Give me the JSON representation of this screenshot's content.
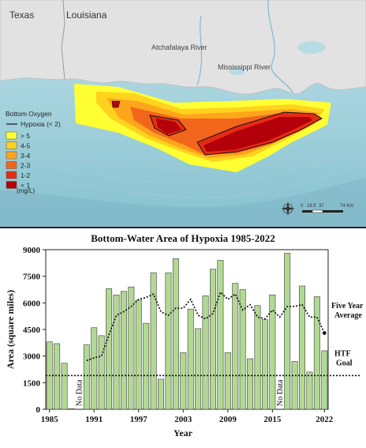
{
  "map": {
    "labels": {
      "texas": "Texas",
      "louisiana": "Louisiana",
      "atchafalaya": "Atchafalaya River",
      "mississippi": "Mississippi River"
    },
    "legend": {
      "title": "Bottom Oxygen",
      "hypoxia_line": "Hypoxia  (< 2)",
      "items": [
        {
          "label": "> 5",
          "color": "#ffff33"
        },
        {
          "label": "4-5",
          "color": "#ffd21e"
        },
        {
          "label": "3-4",
          "color": "#ffa51c"
        },
        {
          "label": "2-3",
          "color": "#f2661c"
        },
        {
          "label": "1-2",
          "color": "#e62b14"
        },
        {
          "label": "< 1",
          "color": "#b3000b"
        }
      ],
      "units": "(mg/L)"
    },
    "scale": {
      "ticks": [
        "0",
        "18.5",
        "37",
        "74 Km"
      ]
    },
    "compass_icon": "compass-rose-icon",
    "colors": {
      "land": "#e4e4e4",
      "water": "#b9dce4",
      "deep_water": "#8ec8d4"
    }
  },
  "chart_data": {
    "type": "bar",
    "title": "Bottom-Water Area of Hypoxia 1985-2022",
    "xlabel": "Year",
    "ylabel": "Area (square miles)",
    "ylim": [
      0,
      9000
    ],
    "yticks": [
      0,
      1500,
      3000,
      4500,
      6000,
      7500,
      9000
    ],
    "ytick_labels": [
      "0",
      "1500",
      "3000",
      "4500",
      "6000",
      "7500",
      "9000"
    ],
    "xtick_labels": [
      "1985",
      "1991",
      "1997",
      "2003",
      "2009",
      "2015",
      "2022"
    ],
    "categories": [
      1985,
      1986,
      1987,
      1988,
      1989,
      1990,
      1991,
      1992,
      1993,
      1994,
      1995,
      1996,
      1997,
      1998,
      1999,
      2000,
      2001,
      2002,
      2003,
      2004,
      2005,
      2006,
      2007,
      2008,
      2009,
      2010,
      2011,
      2012,
      2013,
      2014,
      2015,
      2016,
      2017,
      2018,
      2019,
      2020,
      2021,
      2022
    ],
    "series": [
      {
        "values": [
          3800,
          3700,
          2600,
          40,
          null,
          3650,
          4600,
          4150,
          6800,
          6450,
          6650,
          6900,
          6150,
          4850,
          7700,
          1700,
          7700,
          8500,
          3200,
          5650,
          4550,
          6400,
          7900,
          8400,
          3200,
          7100,
          6750,
          2850,
          5850,
          5050,
          6450,
          null,
          8800,
          2700,
          6950,
          2100,
          6350,
          3300
        ],
        "color": "#b2d894"
      },
      {
        "name": "Five Year Average",
        "type": "line",
        "style": "dotted",
        "x": [
          1990,
          1991,
          1992,
          1993,
          1994,
          1995,
          1996,
          1997,
          1998,
          1999,
          2000,
          2001,
          2002,
          2003,
          2004,
          2005,
          2006,
          2007,
          2008,
          2009,
          2010,
          2011,
          2012,
          2013,
          2014,
          2015,
          2016,
          2017,
          2018,
          2019,
          2020,
          2021,
          2022
        ],
        "values": [
          2750,
          2900,
          3000,
          4200,
          5300,
          5500,
          5800,
          6200,
          6300,
          6500,
          5500,
          5300,
          5700,
          5700,
          6200,
          5300,
          5100,
          5400,
          6600,
          6200,
          6500,
          5600,
          5900,
          5200,
          5100,
          5600,
          5200,
          5800,
          5800,
          5900,
          5200,
          5200,
          4300
        ]
      },
      {
        "name": "HTF Goal",
        "type": "hline",
        "style": "dotted",
        "value": 1900
      }
    ],
    "annotations": [
      {
        "text": "No Data",
        "x": 1989
      },
      {
        "text": "No Data",
        "x": 2016
      }
    ],
    "legend_labels": {
      "avg_line1": "Five Year",
      "avg_line2": "Average",
      "goal_line1": "HTF",
      "goal_line2": "Goal"
    },
    "grid": false
  }
}
